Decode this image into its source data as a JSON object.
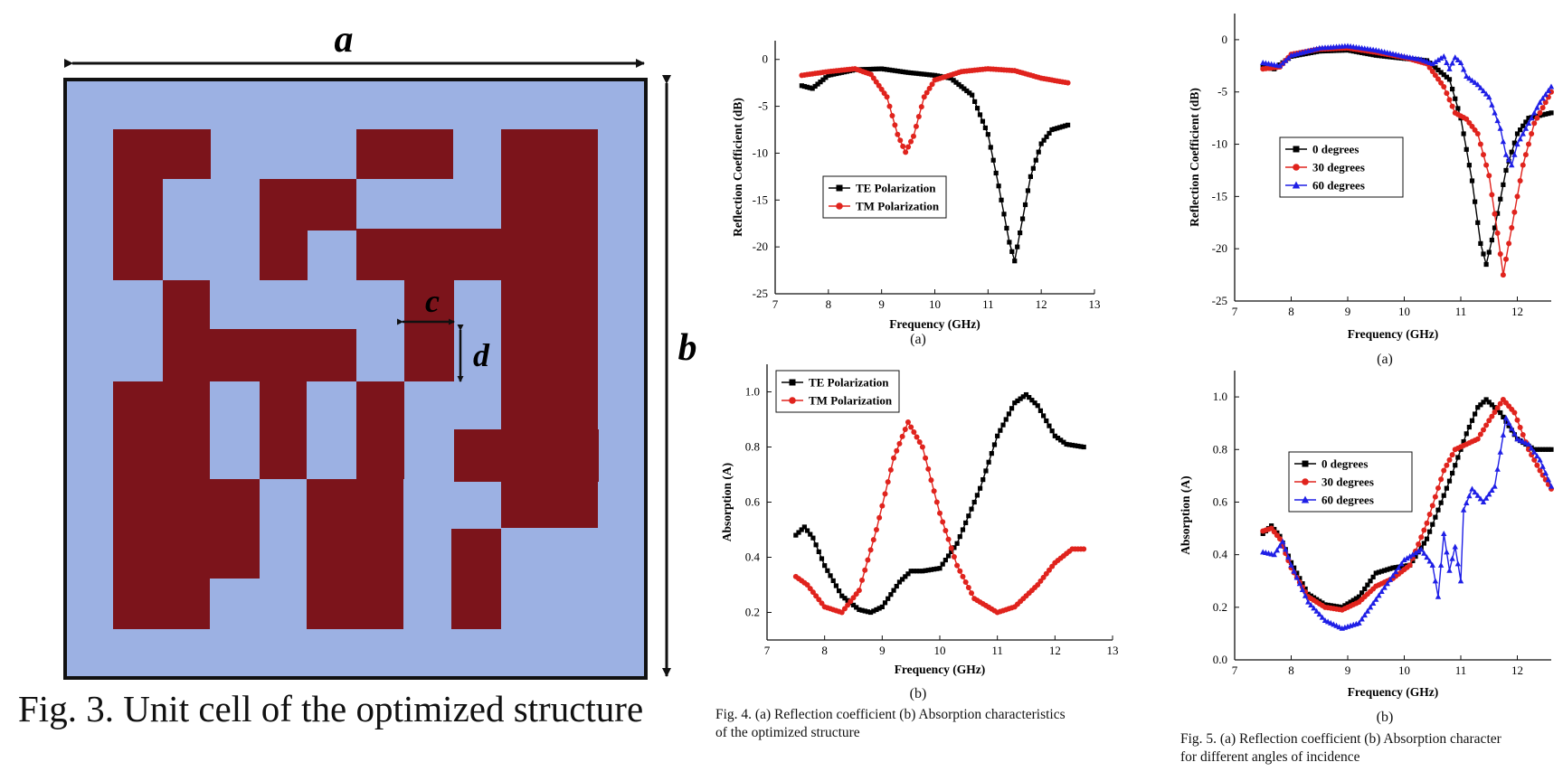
{
  "fig3": {
    "caption": "Fig. 3. Unit cell of the optimized structure",
    "labels": {
      "a": "a",
      "b": "b",
      "c": "c",
      "d": "d"
    },
    "colors": {
      "substrate": "#9CB1E3",
      "metal": "#7C141B",
      "border": "#111111"
    }
  },
  "fig4": {
    "caption_line1": "Fig. 4. (a) Reflection coefficient (b) Absorption characteristics",
    "caption_line2": "of the optimized structure",
    "label_a": "(a)",
    "label_b": "(b)"
  },
  "fig5": {
    "caption_line1": "Fig. 5. (a) Reflection coefficient (b) Absorption character",
    "caption_line2": "for different angles of incidence",
    "label_a": "(a)",
    "label_b": "(b)"
  },
  "chart_data": [
    {
      "id": "fig4a",
      "type": "line",
      "xlabel": "Frequency (GHz)",
      "ylabel": "Reflection Coefficient (dB)",
      "xlim": [
        7,
        13
      ],
      "ylim": [
        -25,
        2
      ],
      "xticks": [
        7,
        8,
        9,
        10,
        11,
        12,
        13
      ],
      "yticks": [
        0,
        -5,
        -10,
        -15,
        -20,
        -25
      ],
      "legend_position": "center-left",
      "series": [
        {
          "name": "TE Polarization",
          "color": "#000000",
          "marker": "square",
          "points": [
            [
              7.5,
              -2.8
            ],
            [
              7.7,
              -3.1
            ],
            [
              8.0,
              -1.7
            ],
            [
              8.5,
              -1.1
            ],
            [
              9.0,
              -1.0
            ],
            [
              9.5,
              -1.4
            ],
            [
              10.0,
              -1.7
            ],
            [
              10.3,
              -2.0
            ],
            [
              10.7,
              -3.8
            ],
            [
              11.0,
              -8.0
            ],
            [
              11.2,
              -13.5
            ],
            [
              11.4,
              -19.5
            ],
            [
              11.5,
              -21.5
            ],
            [
              11.6,
              -18.5
            ],
            [
              11.8,
              -12.5
            ],
            [
              12.0,
              -9.0
            ],
            [
              12.2,
              -7.5
            ],
            [
              12.5,
              -7.0
            ]
          ]
        },
        {
          "name": "TM Polarization",
          "color": "#e0231d",
          "marker": "circle",
          "points": [
            [
              7.5,
              -1.7
            ],
            [
              8.0,
              -1.3
            ],
            [
              8.5,
              -1.0
            ],
            [
              8.8,
              -1.6
            ],
            [
              9.1,
              -4.0
            ],
            [
              9.3,
              -8.0
            ],
            [
              9.45,
              -9.9
            ],
            [
              9.6,
              -8.2
            ],
            [
              9.8,
              -4.0
            ],
            [
              10.0,
              -2.2
            ],
            [
              10.5,
              -1.3
            ],
            [
              11.0,
              -1.0
            ],
            [
              11.5,
              -1.2
            ],
            [
              12.0,
              -2.0
            ],
            [
              12.5,
              -2.5
            ]
          ]
        }
      ]
    },
    {
      "id": "fig4b",
      "type": "line",
      "xlabel": "Frequency (GHz)",
      "ylabel": "Absorption (A)",
      "xlim": [
        7,
        13
      ],
      "ylim": [
        0.1,
        1.1
      ],
      "xticks": [
        7,
        8,
        9,
        10,
        11,
        12,
        13
      ],
      "yticks": [
        0.2,
        0.4,
        0.6,
        0.8,
        1.0
      ],
      "legend_position": "top-left",
      "series": [
        {
          "name": "TE Polarization",
          "color": "#000000",
          "marker": "square",
          "points": [
            [
              7.5,
              0.48
            ],
            [
              7.65,
              0.51
            ],
            [
              7.8,
              0.47
            ],
            [
              8.0,
              0.37
            ],
            [
              8.3,
              0.26
            ],
            [
              8.6,
              0.21
            ],
            [
              8.8,
              0.2
            ],
            [
              9.0,
              0.22
            ],
            [
              9.3,
              0.31
            ],
            [
              9.5,
              0.35
            ],
            [
              9.7,
              0.35
            ],
            [
              10.0,
              0.36
            ],
            [
              10.3,
              0.45
            ],
            [
              10.7,
              0.65
            ],
            [
              11.0,
              0.84
            ],
            [
              11.3,
              0.96
            ],
            [
              11.5,
              0.99
            ],
            [
              11.7,
              0.95
            ],
            [
              12.0,
              0.84
            ],
            [
              12.2,
              0.81
            ],
            [
              12.5,
              0.8
            ]
          ]
        },
        {
          "name": "TM Polarization",
          "color": "#e0231d",
          "marker": "circle",
          "points": [
            [
              7.5,
              0.33
            ],
            [
              7.7,
              0.3
            ],
            [
              8.0,
              0.22
            ],
            [
              8.3,
              0.2
            ],
            [
              8.6,
              0.28
            ],
            [
              8.9,
              0.5
            ],
            [
              9.2,
              0.76
            ],
            [
              9.45,
              0.89
            ],
            [
              9.7,
              0.8
            ],
            [
              10.0,
              0.56
            ],
            [
              10.3,
              0.37
            ],
            [
              10.6,
              0.25
            ],
            [
              11.0,
              0.2
            ],
            [
              11.3,
              0.22
            ],
            [
              11.7,
              0.3
            ],
            [
              12.0,
              0.38
            ],
            [
              12.3,
              0.43
            ],
            [
              12.5,
              0.43
            ]
          ]
        }
      ]
    },
    {
      "id": "fig5a",
      "type": "line",
      "xlabel": "Frequency (GHz)",
      "ylabel": "Reflection Coefficient (dB)",
      "xlim": [
        7,
        12.6
      ],
      "ylim": [
        -25,
        2.5
      ],
      "xticks": [
        7,
        8,
        9,
        10,
        11,
        12
      ],
      "yticks": [
        0,
        -5,
        -10,
        -15,
        -20,
        -25
      ],
      "legend_position": "center-left",
      "series": [
        {
          "name": "0 degrees",
          "color": "#000000",
          "marker": "square",
          "points": [
            [
              7.5,
              -2.6
            ],
            [
              7.7,
              -2.8
            ],
            [
              8.0,
              -1.6
            ],
            [
              8.5,
              -1.1
            ],
            [
              9.0,
              -1.0
            ],
            [
              9.5,
              -1.5
            ],
            [
              10.0,
              -1.8
            ],
            [
              10.4,
              -2.0
            ],
            [
              10.8,
              -3.8
            ],
            [
              11.0,
              -7.5
            ],
            [
              11.2,
              -13.5
            ],
            [
              11.35,
              -19.5
            ],
            [
              11.45,
              -21.5
            ],
            [
              11.6,
              -18.0
            ],
            [
              11.8,
              -12.5
            ],
            [
              12.0,
              -9.0
            ],
            [
              12.2,
              -7.5
            ],
            [
              12.6,
              -7.0
            ]
          ]
        },
        {
          "name": "30 degrees",
          "color": "#e0231d",
          "marker": "circle",
          "points": [
            [
              7.5,
              -2.8
            ],
            [
              7.8,
              -2.6
            ],
            [
              8.0,
              -1.4
            ],
            [
              8.5,
              -0.9
            ],
            [
              9.0,
              -0.8
            ],
            [
              9.5,
              -1.2
            ],
            [
              10.0,
              -1.7
            ],
            [
              10.4,
              -2.3
            ],
            [
              10.7,
              -4.5
            ],
            [
              10.9,
              -7.0
            ],
            [
              11.1,
              -7.6
            ],
            [
              11.3,
              -9.0
            ],
            [
              11.5,
              -13.0
            ],
            [
              11.65,
              -18.5
            ],
            [
              11.75,
              -22.5
            ],
            [
              11.9,
              -18.0
            ],
            [
              12.1,
              -12.0
            ],
            [
              12.3,
              -8.0
            ],
            [
              12.6,
              -5.0
            ]
          ]
        },
        {
          "name": "60 degrees",
          "color": "#1f1fe6",
          "marker": "triangle",
          "points": [
            [
              7.5,
              -2.2
            ],
            [
              7.8,
              -2.5
            ],
            [
              8.0,
              -1.5
            ],
            [
              8.5,
              -0.8
            ],
            [
              9.0,
              -0.6
            ],
            [
              9.5,
              -1.0
            ],
            [
              10.0,
              -1.6
            ],
            [
              10.3,
              -1.9
            ],
            [
              10.5,
              -2.3
            ],
            [
              10.7,
              -1.6
            ],
            [
              10.8,
              -2.8
            ],
            [
              10.9,
              -1.7
            ],
            [
              11.0,
              -2.2
            ],
            [
              11.1,
              -3.5
            ],
            [
              11.3,
              -4.3
            ],
            [
              11.5,
              -5.5
            ],
            [
              11.7,
              -8.5
            ],
            [
              11.8,
              -11.0
            ],
            [
              11.9,
              -12.0
            ],
            [
              12.0,
              -10.0
            ],
            [
              12.2,
              -8.0
            ],
            [
              12.4,
              -6.0
            ],
            [
              12.6,
              -4.5
            ]
          ]
        }
      ]
    },
    {
      "id": "fig5b",
      "type": "line",
      "xlabel": "Frequency (GHz)",
      "ylabel": "Absorption (A)",
      "xlim": [
        7,
        12.6
      ],
      "ylim": [
        0.0,
        1.1
      ],
      "xticks": [
        7,
        8,
        9,
        10,
        11,
        12
      ],
      "yticks": [
        0.0,
        0.2,
        0.4,
        0.6,
        0.8,
        1.0
      ],
      "legend_position": "center-left",
      "series": [
        {
          "name": "0 degrees",
          "color": "#000000",
          "marker": "square",
          "points": [
            [
              7.5,
              0.48
            ],
            [
              7.65,
              0.51
            ],
            [
              7.8,
              0.47
            ],
            [
              8.0,
              0.37
            ],
            [
              8.3,
              0.25
            ],
            [
              8.6,
              0.21
            ],
            [
              8.9,
              0.2
            ],
            [
              9.2,
              0.24
            ],
            [
              9.5,
              0.33
            ],
            [
              9.8,
              0.35
            ],
            [
              10.1,
              0.36
            ],
            [
              10.4,
              0.46
            ],
            [
              10.8,
              0.68
            ],
            [
              11.1,
              0.86
            ],
            [
              11.3,
              0.96
            ],
            [
              11.45,
              0.99
            ],
            [
              11.7,
              0.94
            ],
            [
              12.0,
              0.84
            ],
            [
              12.3,
              0.8
            ],
            [
              12.6,
              0.8
            ]
          ]
        },
        {
          "name": "30 degrees",
          "color": "#e0231d",
          "marker": "circle",
          "points": [
            [
              7.5,
              0.49
            ],
            [
              7.65,
              0.5
            ],
            [
              7.8,
              0.46
            ],
            [
              8.0,
              0.35
            ],
            [
              8.3,
              0.24
            ],
            [
              8.6,
              0.2
            ],
            [
              8.9,
              0.19
            ],
            [
              9.2,
              0.22
            ],
            [
              9.5,
              0.28
            ],
            [
              9.8,
              0.31
            ],
            [
              10.1,
              0.36
            ],
            [
              10.4,
              0.52
            ],
            [
              10.7,
              0.72
            ],
            [
              10.9,
              0.8
            ],
            [
              11.1,
              0.82
            ],
            [
              11.3,
              0.84
            ],
            [
              11.5,
              0.91
            ],
            [
              11.75,
              0.99
            ],
            [
              11.95,
              0.94
            ],
            [
              12.2,
              0.8
            ],
            [
              12.4,
              0.72
            ],
            [
              12.6,
              0.65
            ]
          ]
        },
        {
          "name": "60 degrees",
          "color": "#1f1fe6",
          "marker": "triangle",
          "points": [
            [
              7.5,
              0.41
            ],
            [
              7.7,
              0.4
            ],
            [
              7.85,
              0.45
            ],
            [
              8.0,
              0.36
            ],
            [
              8.3,
              0.22
            ],
            [
              8.6,
              0.15
            ],
            [
              8.9,
              0.12
            ],
            [
              9.2,
              0.14
            ],
            [
              9.6,
              0.26
            ],
            [
              10.0,
              0.38
            ],
            [
              10.3,
              0.42
            ],
            [
              10.5,
              0.36
            ],
            [
              10.6,
              0.24
            ],
            [
              10.7,
              0.48
            ],
            [
              10.8,
              0.34
            ],
            [
              10.9,
              0.43
            ],
            [
              11.0,
              0.3
            ],
            [
              11.05,
              0.57
            ],
            [
              11.2,
              0.65
            ],
            [
              11.4,
              0.6
            ],
            [
              11.6,
              0.66
            ],
            [
              11.8,
              0.92
            ],
            [
              12.0,
              0.84
            ],
            [
              12.2,
              0.82
            ],
            [
              12.4,
              0.76
            ],
            [
              12.6,
              0.66
            ]
          ]
        }
      ]
    }
  ]
}
